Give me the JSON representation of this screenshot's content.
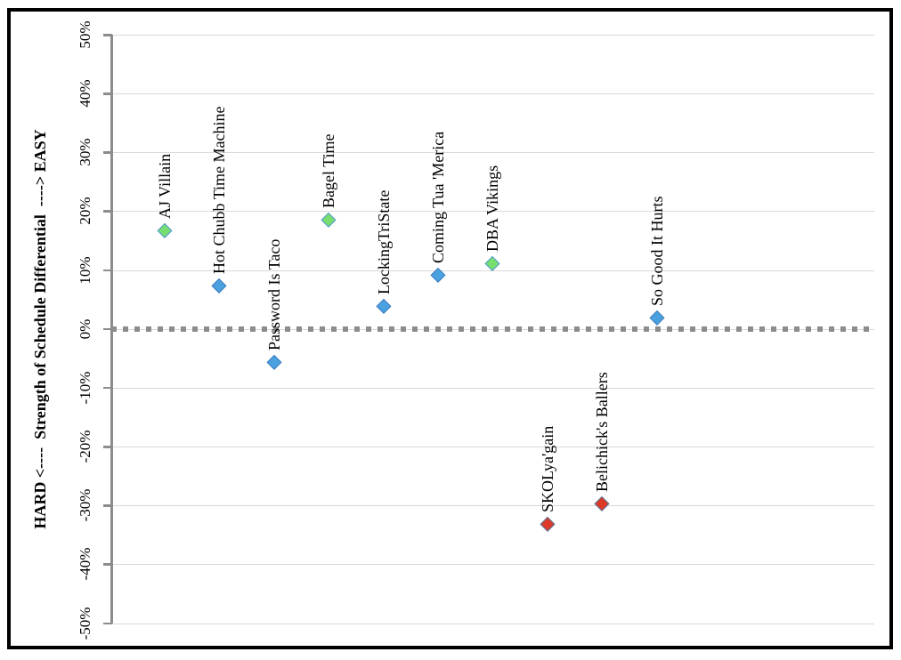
{
  "chart_data": {
    "type": "scatter",
    "title": "",
    "y_axis": {
      "label": "HARD <----  Strength of Schedule Differential  ----> EASY",
      "max": 50,
      "min": -50,
      "step": 10,
      "tick_labels": [
        "50%",
        "40%",
        "30%",
        "20%",
        "10%",
        "0%",
        "-10%",
        "-20%",
        "-30%",
        "-40%",
        "-50%"
      ]
    },
    "zero_line": {
      "value": 0,
      "style": "dashed",
      "color": "#8C8C8C"
    },
    "series": [
      {
        "name": "AJ Villain",
        "value": 16.8,
        "color": "green"
      },
      {
        "name": "Hot Chubb Time Machine",
        "value": 7.4,
        "color": "blue"
      },
      {
        "name": "Password Is Taco",
        "value": -5.6,
        "color": "blue"
      },
      {
        "name": "Bagel Time",
        "value": 18.5,
        "color": "green"
      },
      {
        "name": "LockingTriState",
        "value": 3.9,
        "color": "blue"
      },
      {
        "name": "Coming Tua 'Merica",
        "value": 9.2,
        "color": "blue"
      },
      {
        "name": "DBA Vikings",
        "value": 11.2,
        "color": "green"
      },
      {
        "name": "SKOLya'gain",
        "value": -33.2,
        "color": "red"
      },
      {
        "name": "Belichick's Ballers",
        "value": -29.7,
        "color": "red"
      },
      {
        "name": "So Good It Hurts",
        "value": 1.9,
        "color": "blue"
      }
    ],
    "marker": {
      "shape": "diamond",
      "styles": {
        "green": {
          "fill": "#79DE70",
          "border": "#4E97D1"
        },
        "blue": {
          "fill": "#4AA1DF",
          "border": "#3E7CBF"
        },
        "red": {
          "fill": "#DC3A27",
          "border": "#54759E"
        }
      }
    },
    "colors": {
      "gridline": "#D9D9D9",
      "axis": "#8C8C8C",
      "frame": "#000000",
      "text": "#000000"
    },
    "grid": "horizontal",
    "legend": "none"
  }
}
